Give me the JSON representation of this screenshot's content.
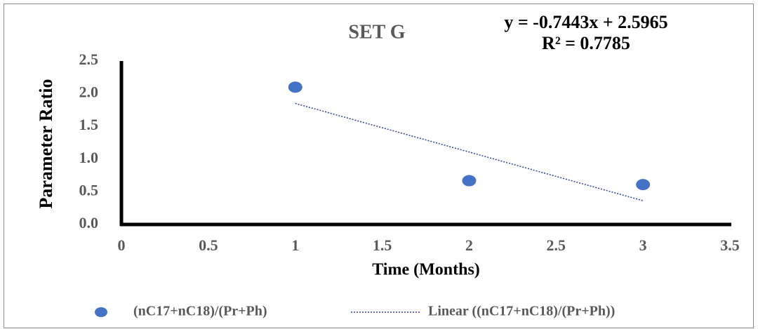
{
  "chart_data": {
    "type": "scatter",
    "title": "SET G",
    "x_label": "Time (Months)",
    "y_label": "Parameter Ratio",
    "series": [
      {
        "name": "(nC17+nC18)/(Pr+Ph)",
        "color": "#4472c4",
        "x": [
          1,
          2,
          3
        ],
        "values": [
          2.1,
          0.67,
          0.61
        ]
      }
    ],
    "trendline": {
      "name": "Linear ((nC17+nC18)/(Pr+Ph))",
      "equation": "y = -0.7443x + 2.5965",
      "r_squared": "R² = 0.7785",
      "slope": -0.7443,
      "intercept": 2.5965,
      "color": "#2e3f9e"
    },
    "xlim": [
      0,
      3.5
    ],
    "xticks": [
      0,
      0.5,
      1,
      1.5,
      2,
      2.5,
      3,
      3.5
    ],
    "ylim": [
      0,
      2.5
    ],
    "yticks": [
      {
        "value": 0,
        "label": "0.0"
      },
      0.5,
      {
        "value": 1,
        "label": "1.0"
      },
      1.5,
      {
        "value": 2,
        "label": "2.0"
      },
      2.5
    ],
    "grid": false
  }
}
